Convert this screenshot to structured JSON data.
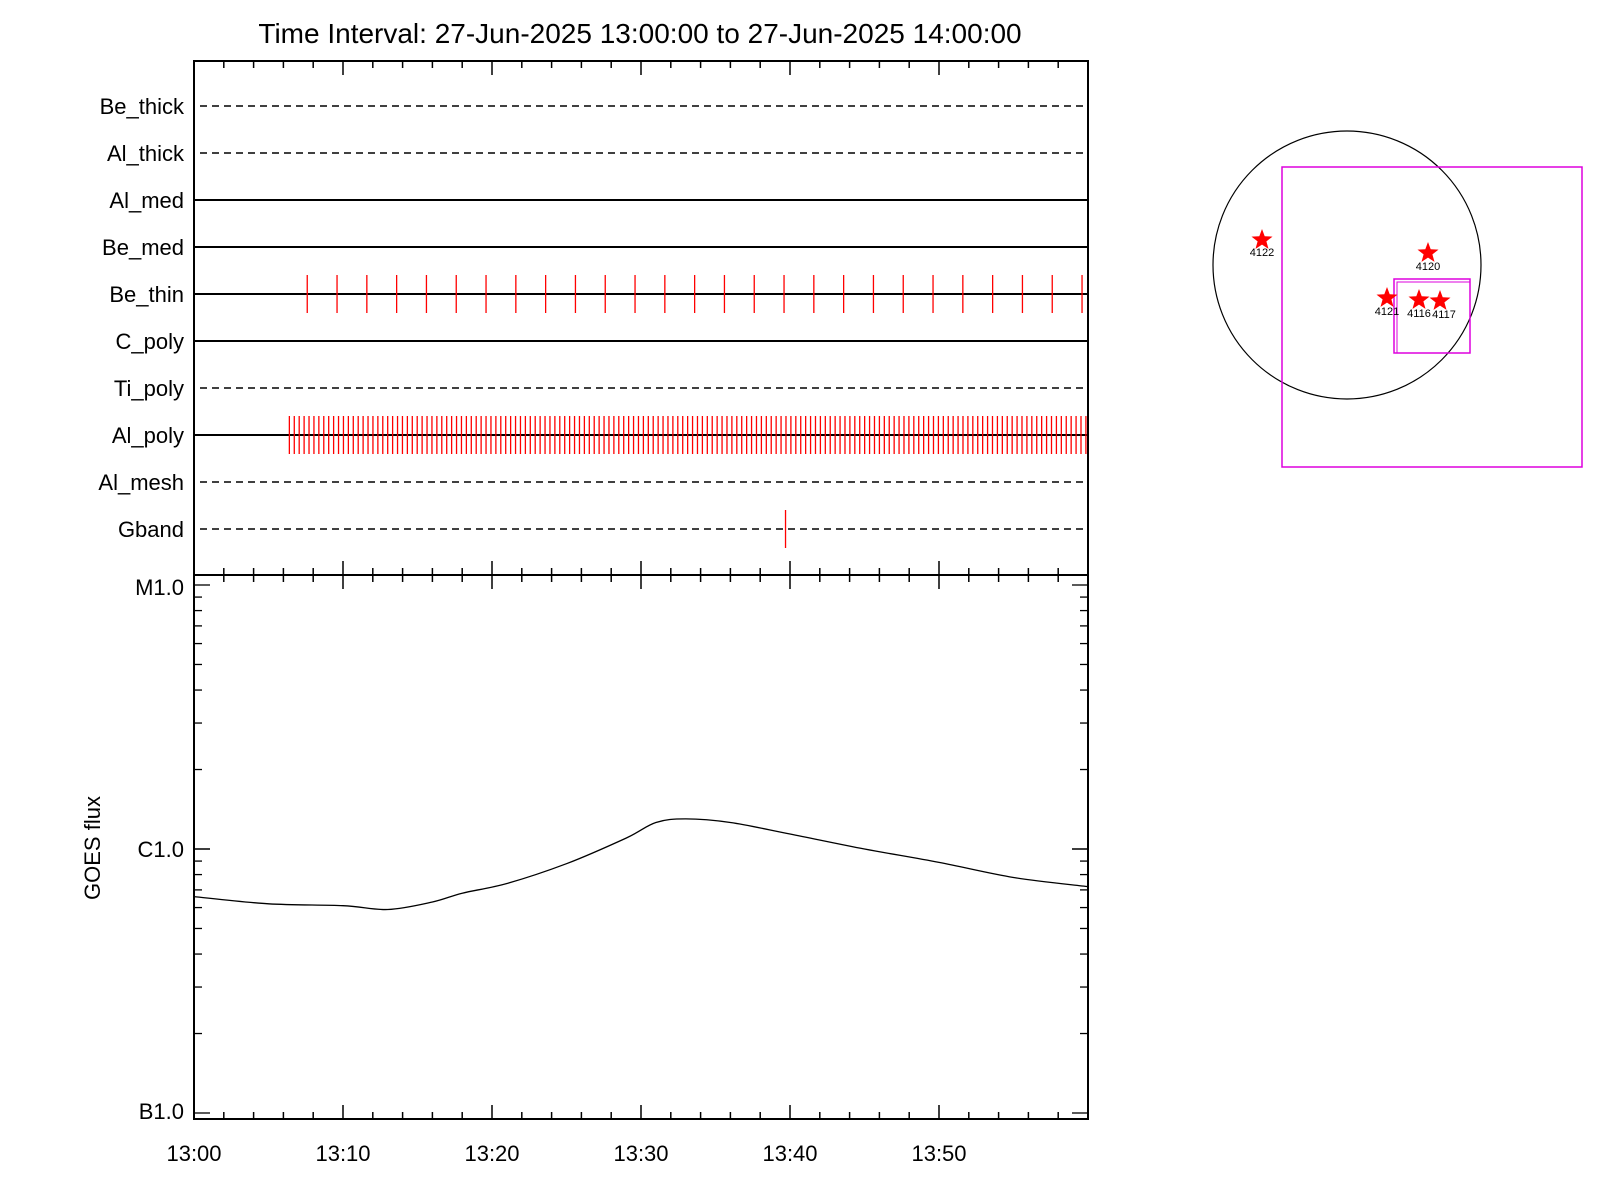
{
  "chart_data": [
    {
      "type": "timeline",
      "title": "Time Interval: 27-Jun-2025 13:00:00 to 27-Jun-2025 14:00:00",
      "xlim": [
        "13:00",
        "14:00"
      ],
      "x_tick_labels": [
        "13:00",
        "13:10",
        "13:20",
        "13:30",
        "13:40",
        "13:50"
      ],
      "rows": [
        {
          "name": "Be_thick",
          "line": "dashed",
          "marks": []
        },
        {
          "name": "Al_thick",
          "line": "dashed",
          "marks": []
        },
        {
          "name": "Al_med",
          "line": "solid",
          "marks": []
        },
        {
          "name": "Be_med",
          "line": "solid",
          "marks": []
        },
        {
          "name": "Be_thin",
          "line": "solid",
          "mark_start": 7.6,
          "mark_step": 2.0,
          "mark_end": 60.0
        },
        {
          "name": "C_poly",
          "line": "solid",
          "marks": []
        },
        {
          "name": "Ti_poly",
          "line": "dashed",
          "marks": []
        },
        {
          "name": "Al_poly",
          "line": "solid",
          "mark_start": 6.4,
          "mark_step": 0.33,
          "mark_end": 60.0
        },
        {
          "name": "Al_mesh",
          "line": "dashed",
          "marks": []
        },
        {
          "name": "Gband",
          "line": "dashed",
          "marks": [
            39.7
          ]
        }
      ],
      "mark_color": "#ff0000"
    },
    {
      "type": "line",
      "ylabel": "GOES flux",
      "y_scale": "log",
      "y_tick_labels": [
        "M1.0",
        "C1.0",
        "B1.0"
      ],
      "ylim": [
        1e-07,
        1e-05
      ],
      "xlim": [
        "13:00",
        "14:00"
      ],
      "x_tick_labels": [
        "13:00",
        "13:10",
        "13:20",
        "13:30",
        "13:40",
        "13:50"
      ],
      "series": [
        {
          "x": [
            "13:00",
            "13:05",
            "13:10",
            "13:13",
            "13:16",
            "13:18",
            "13:21",
            "13:25",
            "13:29",
            "13:31",
            "13:33",
            "13:36",
            "13:40",
            "13:45",
            "13:50",
            "13:55",
            "14:00"
          ],
          "y": [
            6.6e-07,
            6.2e-07,
            6.1e-07,
            5.9e-07,
            6.3e-07,
            6.8e-07,
            7.4e-07,
            8.8e-07,
            1.1e-06,
            1.26e-06,
            1.3e-06,
            1.26e-06,
            1.14e-06,
            1e-06,
            8.9e-07,
            7.8e-07,
            7.2e-07
          ]
        }
      ],
      "color": "#000000"
    },
    {
      "type": "map",
      "circle_color": "#000000",
      "box_color": "#dd00dd",
      "marker_color": "#ff0000",
      "regions": [
        {
          "label": "4122"
        },
        {
          "label": "4120"
        },
        {
          "label": "4121"
        },
        {
          "label": "4116"
        },
        {
          "label": "4117"
        }
      ]
    }
  ]
}
